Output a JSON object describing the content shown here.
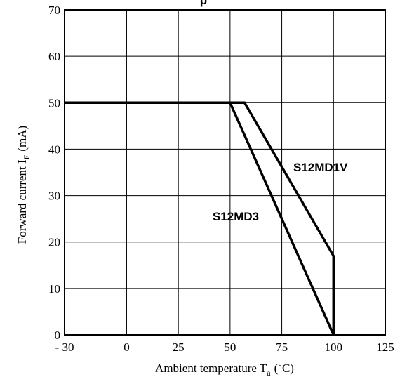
{
  "chart_data": {
    "type": "line",
    "title": "p",
    "xlabel": "Ambient temperature T",
    "xlabel_sub": "a",
    "xlabel_unit": "(˚C)",
    "ylabel": "Forward current I",
    "ylabel_sub": "F",
    "ylabel_unit": "(mA)",
    "xlim": [
      -30,
      125
    ],
    "ylim": [
      0,
      70
    ],
    "xticks": [
      -30,
      0,
      25,
      50,
      75,
      100,
      125
    ],
    "xtick_labels": [
      "- 30",
      "0",
      "25",
      "50",
      "75",
      "100",
      "125"
    ],
    "yticks": [
      0,
      10,
      20,
      30,
      40,
      50,
      60,
      70
    ],
    "ytick_labels": [
      "0",
      "10",
      "20",
      "30",
      "40",
      "50",
      "60",
      "70"
    ],
    "grid": true,
    "series": [
      {
        "name": "S12MD1V",
        "x": [
          -30,
          57,
          100,
          100
        ],
        "y": [
          50,
          50,
          17,
          0
        ]
      },
      {
        "name": "S12MD3",
        "x": [
          -30,
          50,
          100
        ],
        "y": [
          50,
          50,
          0
        ]
      }
    ]
  }
}
